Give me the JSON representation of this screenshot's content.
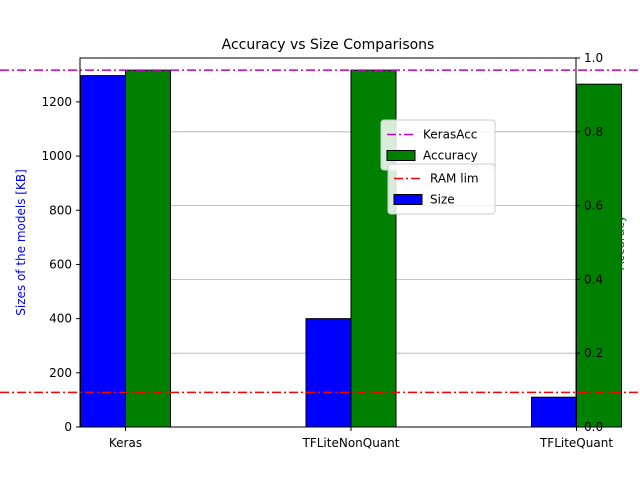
{
  "chart_data": {
    "type": "bar",
    "title": "Accuracy vs Size Comparisons",
    "categories": [
      "Keras",
      "TFLiteNonQuant",
      "TFLiteQuant"
    ],
    "series": [
      {
        "name": "Size",
        "axis": "left",
        "color": "#0000ff",
        "values": [
          1297,
          400,
          110
        ]
      },
      {
        "name": "Accuracy",
        "axis": "right",
        "color": "#008000",
        "values": [
          0.967,
          0.967,
          0.929
        ]
      }
    ],
    "reference_lines": [
      {
        "name": "KerasAcc",
        "axis": "right",
        "value": 0.967,
        "color": "#bf00bf",
        "style": "dash-dot"
      },
      {
        "name": "RAM lim",
        "axis": "left",
        "value": 128,
        "color": "#ff0000",
        "style": "dash-dot"
      }
    ],
    "ylabel": "Sizes of the models [KB]",
    "ylabel_color": "#0000ff",
    "y2label": "Accuracy",
    "y2label_color": "#008000",
    "ylim": [
      0,
      1362
    ],
    "y2lim": [
      0,
      1.0
    ],
    "yticks": [
      0,
      200,
      400,
      600,
      800,
      1000,
      1200
    ],
    "y2ticks": [
      0.0,
      0.2,
      0.4,
      0.6,
      0.8,
      1.0
    ],
    "grid": "horizontal-right-axis",
    "legend_upper": [
      "KerasAcc",
      "Accuracy"
    ],
    "legend_lower": [
      "RAM lim",
      "Size"
    ],
    "legend_placement": "center-right"
  }
}
